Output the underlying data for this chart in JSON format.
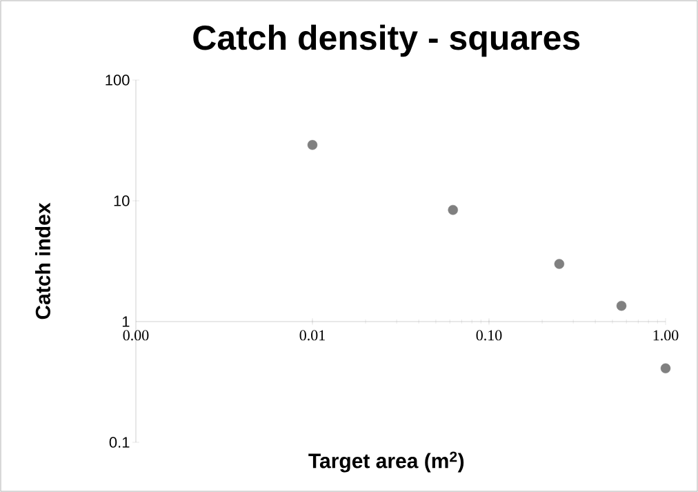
{
  "chart_data": {
    "type": "scatter",
    "title": "Catch density - squares",
    "xlabel": "Target area (m$^{2}$)",
    "ylabel": "Catch index",
    "x": [
      0.01,
      0.0625,
      0.25,
      0.5625,
      1
    ],
    "series": [
      {
        "color": "#808080",
        "values": [
          29,
          8.4,
          3,
          1.35,
          0.41
        ]
      }
    ],
    "log": "xy",
    "marker": "circle",
    "xlim": [
      0.001,
      1
    ],
    "ylim": [
      0.1,
      100
    ],
    "xticks": [
      {
        "value": 0.001,
        "label": "0.00"
      },
      {
        "value": 0.01,
        "label": "0.01"
      },
      {
        "value": 0.1,
        "label": "0.10"
      },
      {
        "value": 1,
        "label": "1.00"
      }
    ],
    "yticks": [
      0.1,
      1,
      10,
      100
    ]
  }
}
